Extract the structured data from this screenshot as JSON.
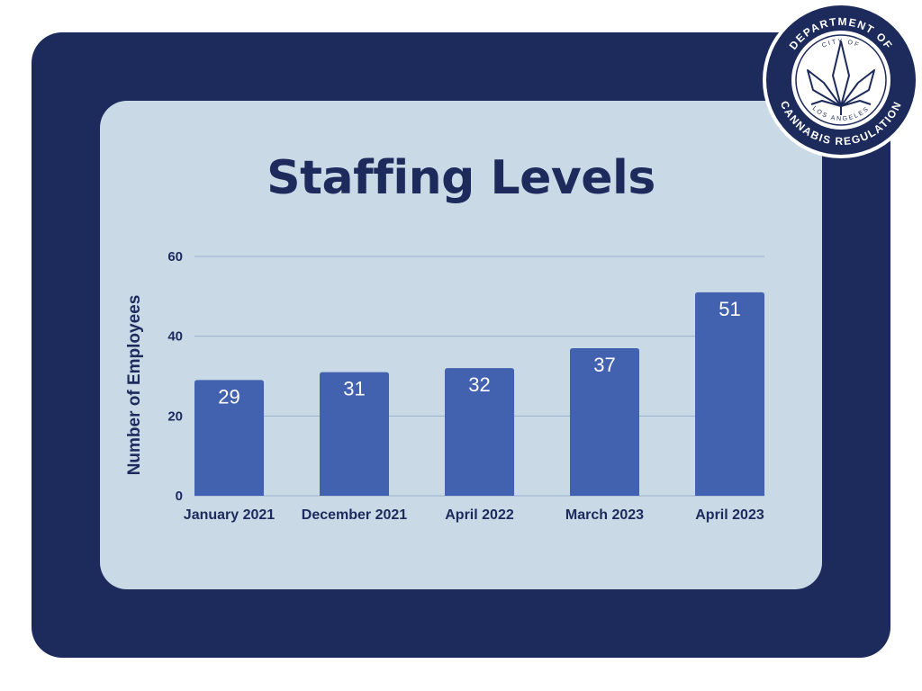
{
  "colors": {
    "background": "#ffffff",
    "panel": "#1c2a5c",
    "card": "#c9d9e6",
    "bar": "#4262b0",
    "gridline": "#9aaecb",
    "text": "#1c2a5c",
    "data_label": "#ffffff"
  },
  "seal": {
    "icon": "cannabis-leaf-icon",
    "top_text": "DEPARTMENT OF",
    "inner_top_text": "CITY OF",
    "inner_bottom_text": "LOS ANGELES",
    "bottom_text": "CANNABIS REGULATION"
  },
  "chart_data": {
    "type": "bar",
    "title": "Staffing Levels",
    "xlabel": "",
    "ylabel": "Number of Employees",
    "categories": [
      "January 2021",
      "December 2021",
      "April 2022",
      "March 2023",
      "April 2023"
    ],
    "values": [
      29,
      31,
      32,
      37,
      51
    ],
    "ylim": [
      0,
      60
    ],
    "yticks": [
      0,
      20,
      40,
      60
    ],
    "grid": true,
    "data_labels": true,
    "legend": false
  }
}
